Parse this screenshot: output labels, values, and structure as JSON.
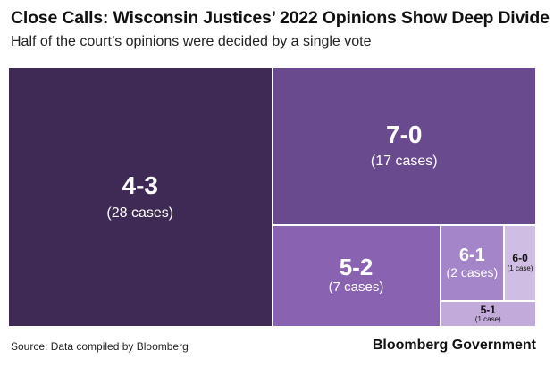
{
  "header": {
    "title": "Close Calls: Wisconsin Justices’ 2022 Opinions Show Deep Divide",
    "subtitle": "Half of the court’s opinions were decided by a single vote"
  },
  "footer": {
    "source": "Source: Data compiled by Bloomberg",
    "brand": "Bloomberg Government"
  },
  "chart_data": {
    "type": "treemap",
    "title": "Close Calls: Wisconsin Justices’ 2022 Opinions Show Deep Divide",
    "subtitle": "Half of the court’s opinions were decided by a single vote",
    "total": 56,
    "categories": [
      "4-3",
      "7-0",
      "5-2",
      "6-1",
      "6-0",
      "5-1"
    ],
    "values": [
      28,
      17,
      7,
      2,
      1,
      1
    ],
    "tiles": [
      {
        "label": "4-3",
        "value": 28,
        "count_label": "(28 cases)",
        "color": "#3f2a55"
      },
      {
        "label": "7-0",
        "value": 17,
        "count_label": "(17 cases)",
        "color": "#6a4a8e"
      },
      {
        "label": "5-2",
        "value": 7,
        "count_label": "(7 cases)",
        "color": "#8a62b2"
      },
      {
        "label": "6-1",
        "value": 2,
        "count_label": "(2 cases)",
        "color": "#a585c9"
      },
      {
        "label": "6-0",
        "value": 1,
        "count_label": "(1 case)",
        "color": "#cfbde3"
      },
      {
        "label": "5-1",
        "value": 1,
        "count_label": "(1 case)",
        "color": "#c2aadb"
      }
    ]
  }
}
